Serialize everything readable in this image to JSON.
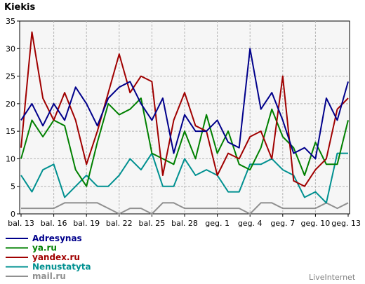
{
  "chart_data": {
    "type": "line",
    "title": "Kiekis",
    "ylim": [
      0,
      35
    ],
    "yticks": [
      0,
      5,
      10,
      15,
      20,
      25,
      30,
      35
    ],
    "grid": true,
    "x_tick_labels": [
      "bal. 13",
      "bal. 16",
      "bal. 19",
      "bal. 22",
      "bal. 25",
      "bal. 28",
      "geg. 1",
      "geg. 4",
      "geg. 7",
      "geg. 10",
      "geg. 13"
    ],
    "series": [
      {
        "name": "Adresynas",
        "color": "#00008b",
        "values": [
          17,
          20,
          16,
          20,
          17,
          23,
          20,
          16,
          21,
          23,
          24,
          20,
          17,
          21,
          11,
          18,
          15,
          15,
          17,
          13,
          12,
          30,
          19,
          22,
          17,
          11,
          12,
          10,
          21,
          17,
          24
        ]
      },
      {
        "name": "ya.ru",
        "color": "#008000",
        "values": [
          10,
          17,
          14,
          17,
          16,
          8,
          5,
          13,
          20,
          18,
          19,
          21,
          11,
          10,
          9,
          15,
          10,
          18,
          11,
          15,
          9,
          8,
          12,
          19,
          14,
          12,
          7,
          13,
          9,
          9,
          17
        ]
      },
      {
        "name": "yandex.ru",
        "color": "#a00000",
        "values": [
          12,
          33,
          21,
          17,
          22,
          17,
          9,
          15,
          22,
          29,
          22,
          25,
          24,
          7,
          17,
          22,
          16,
          15,
          7,
          11,
          10,
          14,
          15,
          10,
          25,
          6,
          5,
          8,
          10,
          19,
          21
        ]
      },
      {
        "name": "Nenustatyta",
        "color": "#009090",
        "values": [
          7,
          4,
          8,
          9,
          3,
          5,
          7,
          5,
          5,
          7,
          10,
          8,
          11,
          5,
          5,
          10,
          7,
          8,
          7,
          4,
          4,
          9,
          9,
          10,
          8,
          7,
          3,
          4,
          2,
          11,
          11
        ]
      },
      {
        "name": "mail.ru",
        "color": "#909090",
        "values": [
          1,
          1,
          1,
          1,
          2,
          2,
          2,
          2,
          1,
          0,
          1,
          1,
          0,
          2,
          2,
          1,
          1,
          1,
          1,
          1,
          1,
          0,
          2,
          2,
          1,
          1,
          1,
          1,
          2,
          1,
          2
        ]
      }
    ]
  },
  "credit": "LiveInternet"
}
